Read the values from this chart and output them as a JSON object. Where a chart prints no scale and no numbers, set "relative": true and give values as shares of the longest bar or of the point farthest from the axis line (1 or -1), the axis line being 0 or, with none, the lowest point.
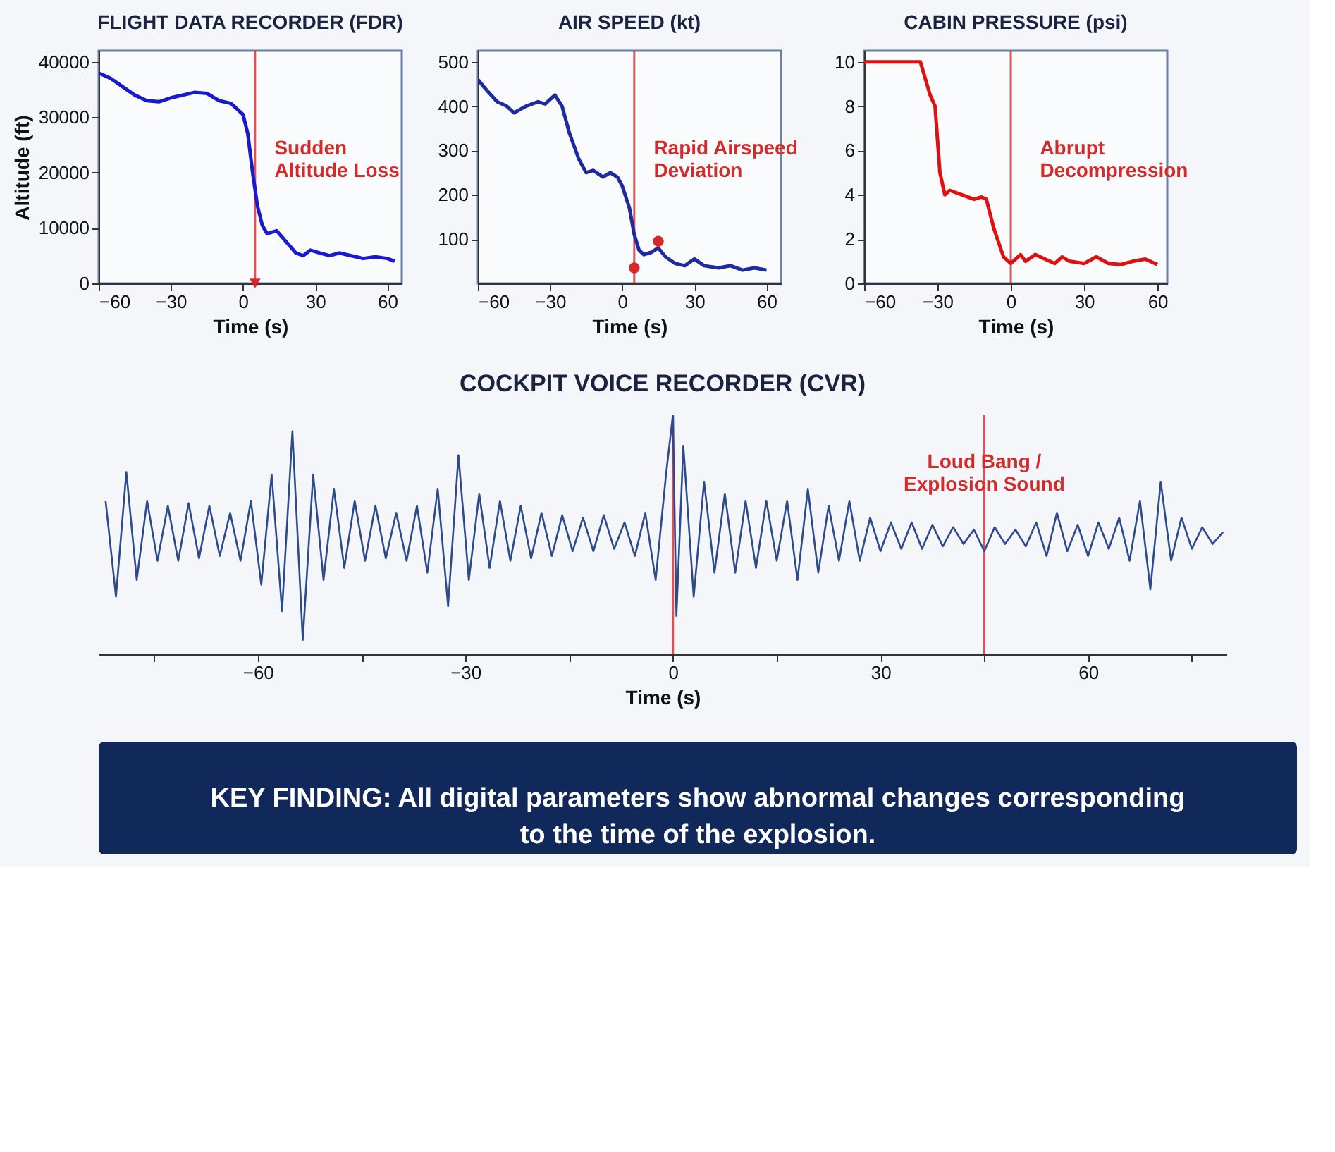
{
  "chart_data": [
    {
      "type": "line",
      "title": "FLIGHT DATA RECORDER (FDR)",
      "xlabel": "Time (s)",
      "ylabel": "Altitude (ft)",
      "xlim": [
        -60,
        66
      ],
      "xticks": [
        -60,
        -30,
        0,
        30,
        60
      ],
      "ylim": [
        0,
        42000
      ],
      "yticks": [
        0,
        10000,
        20000,
        30000,
        40000
      ],
      "series": [
        {
          "color": "#1a1acc",
          "x": [
            -60,
            -55,
            -50,
            -45,
            -40,
            -35,
            -30,
            -25,
            -20,
            -15,
            -10,
            -5,
            0,
            2,
            4,
            6,
            8,
            10,
            14,
            18,
            22,
            25,
            28,
            32,
            36,
            40,
            45,
            50,
            55,
            60,
            63
          ],
          "values": [
            38000,
            37000,
            35500,
            34000,
            33000,
            32800,
            33500,
            34000,
            34500,
            34300,
            33000,
            32500,
            30500,
            27000,
            20000,
            14000,
            10500,
            9000,
            9500,
            7500,
            5500,
            5000,
            6000,
            5500,
            5000,
            5500,
            5000,
            4500,
            4800,
            4500,
            4000
          ]
        },
        {
          "type": "scatter",
          "marker": "triangle",
          "color": "#d42a2a",
          "x": [
            5
          ],
          "values": [
            0
          ]
        }
      ],
      "ref_lines": [
        {
          "axis": "x",
          "value": 5,
          "color": "#d42a2a"
        }
      ],
      "annotations": [
        "Sudden\nAltitude Loss"
      ]
    },
    {
      "type": "line",
      "title": "AIR SPEED (kt)",
      "xlabel": "Time (s)",
      "xlim": [
        -60,
        66
      ],
      "xticks": [
        -60,
        -30,
        0,
        30,
        60
      ],
      "ylim": [
        0,
        525
      ],
      "yticks": [
        100,
        200,
        300,
        400,
        500
      ],
      "series": [
        {
          "color": "#1f2a9c",
          "x": [
            -60,
            -57,
            -52,
            -48,
            -45,
            -40,
            -35,
            -32,
            -28,
            -25,
            -22,
            -18,
            -15,
            -12,
            -8,
            -5,
            -2,
            0,
            3,
            5,
            7,
            9,
            12,
            15,
            18,
            22,
            26,
            30,
            34,
            40,
            45,
            50,
            55,
            60
          ],
          "values": [
            460,
            440,
            410,
            400,
            385,
            400,
            410,
            405,
            425,
            400,
            340,
            280,
            250,
            255,
            240,
            250,
            240,
            220,
            170,
            110,
            75,
            65,
            70,
            80,
            60,
            45,
            40,
            55,
            40,
            35,
            40,
            30,
            35,
            30
          ]
        },
        {
          "type": "scatter",
          "marker": "circle",
          "color": "#d42a2a",
          "x": [
            5,
            15
          ],
          "values": [
            35,
            95
          ]
        }
      ],
      "ref_lines": [
        {
          "axis": "x",
          "value": 5,
          "color": "#d42a2a"
        }
      ],
      "annotations": [
        "Rapid Airspeed\nDeviation"
      ]
    },
    {
      "type": "line",
      "title": "CABIN PRESSURE (psi)",
      "xlabel": "Time (s)",
      "xlim": [
        -60,
        64
      ],
      "xticks": [
        -60,
        -30,
        0,
        30,
        60
      ],
      "ylim": [
        0,
        10.5
      ],
      "yticks": [
        0,
        2,
        4,
        6,
        8,
        10
      ],
      "series": [
        {
          "color": "#e01010",
          "x": [
            -60,
            -37,
            -33,
            -31,
            -29,
            -27,
            -25,
            -20,
            -15,
            -12,
            -10,
            -7,
            -3,
            0,
            2,
            4,
            6,
            10,
            14,
            18,
            21,
            24,
            30,
            35,
            40,
            45,
            50,
            55,
            60
          ],
          "values": [
            10,
            10,
            8.5,
            8,
            5,
            4,
            4.2,
            4,
            3.8,
            3.9,
            3.8,
            2.5,
            1.2,
            0.9,
            1.1,
            1.3,
            1.0,
            1.3,
            1.1,
            0.9,
            1.2,
            1.0,
            0.9,
            1.2,
            0.9,
            0.85,
            1.0,
            1.1,
            0.85
          ]
        }
      ],
      "ref_lines": [
        {
          "axis": "x",
          "value": 0,
          "color": "#d42a2a"
        }
      ],
      "annotations": [
        "Abrupt\nDecompression"
      ]
    },
    {
      "type": "line",
      "title": "COCKPIT VOICE RECORDER (CVR)",
      "xlabel": "Time (s)",
      "relative": true,
      "tick_labels": "x",
      "xlim": [
        -83,
        80
      ],
      "xticks": [
        {
          "value": -75,
          "label": null
        },
        -60,
        {
          "value": -45,
          "label": null
        },
        -30,
        {
          "value": -15,
          "label": null
        },
        0,
        {
          "value": 15,
          "label": null
        },
        30,
        {
          "value": 45,
          "label": null
        },
        60,
        {
          "value": 75,
          "label": null
        }
      ],
      "series": [
        {
          "color": "#2c4a8c",
          "x": [
            -82,
            -80.5,
            -79,
            -77.5,
            -76,
            -74.5,
            -73,
            -71.5,
            -70,
            -68.5,
            -67,
            -65.5,
            -64,
            -62.5,
            -61,
            -59.5,
            -58,
            -56.5,
            -55,
            -53.5,
            -52,
            -50.5,
            -49,
            -47.5,
            -46,
            -44.5,
            -43,
            -41.5,
            -40,
            -38.5,
            -37,
            -35.5,
            -34,
            -32.5,
            -31,
            -29.5,
            -28,
            -26.5,
            -25,
            -23.5,
            -22,
            -20.5,
            -19,
            -17.5,
            -16,
            -14.5,
            -13,
            -11.5,
            -10,
            -8.5,
            -7,
            -5.5,
            -4,
            -2.5,
            -1,
            0,
            0.5,
            1.5,
            3,
            4.5,
            6,
            7.5,
            9,
            10.5,
            12,
            13.5,
            15,
            16.5,
            18,
            19.5,
            21,
            22.5,
            24,
            25.5,
            27,
            28.5,
            30,
            31.5,
            33,
            34.5,
            36,
            37.5,
            39,
            40.5,
            42,
            43.5,
            45,
            46.5,
            48,
            49.5,
            51,
            52.5,
            54,
            55.5,
            57,
            58.5,
            60,
            61.5,
            63,
            64.5,
            66,
            67.5,
            69,
            70.5,
            72,
            73.5,
            75,
            76.5,
            78,
            79.5
          ],
          "values": [
            0.64,
            0.24,
            0.76,
            0.31,
            0.64,
            0.39,
            0.62,
            0.39,
            0.63,
            0.4,
            0.62,
            0.41,
            0.59,
            0.39,
            0.64,
            0.29,
            0.75,
            0.18,
            0.93,
            0.06,
            0.75,
            0.31,
            0.69,
            0.36,
            0.64,
            0.39,
            0.62,
            0.4,
            0.59,
            0.39,
            0.62,
            0.34,
            0.69,
            0.2,
            0.83,
            0.31,
            0.67,
            0.36,
            0.64,
            0.39,
            0.62,
            0.4,
            0.59,
            0.41,
            0.58,
            0.43,
            0.57,
            0.43,
            0.58,
            0.44,
            0.55,
            0.41,
            0.59,
            0.31,
            0.75,
            1.0,
            0.16,
            0.87,
            0.24,
            0.72,
            0.34,
            0.67,
            0.34,
            0.64,
            0.36,
            0.64,
            0.39,
            0.64,
            0.31,
            0.69,
            0.34,
            0.62,
            0.39,
            0.64,
            0.39,
            0.57,
            0.43,
            0.55,
            0.44,
            0.55,
            0.44,
            0.54,
            0.45,
            0.53,
            0.46,
            0.52,
            0.43,
            0.53,
            0.46,
            0.52,
            0.45,
            0.55,
            0.41,
            0.59,
            0.43,
            0.54,
            0.41,
            0.55,
            0.44,
            0.57,
            0.39,
            0.64,
            0.27,
            0.72,
            0.39,
            0.57,
            0.44,
            0.53,
            0.46,
            0.51
          ]
        }
      ],
      "ref_lines": [
        {
          "axis": "x",
          "value": 0,
          "color": "#d42a2a"
        },
        {
          "axis": "x",
          "value": 45,
          "color": "#d42a2a"
        }
      ],
      "annotations": [
        {
          "text": "Loud Bang /\nExplosion Sound",
          "x": 45,
          "y": 0.8
        },
        "KEY FINDING: All digital parameters show abnormal changes corresponding\nto the time of the explosion."
      ]
    }
  ]
}
